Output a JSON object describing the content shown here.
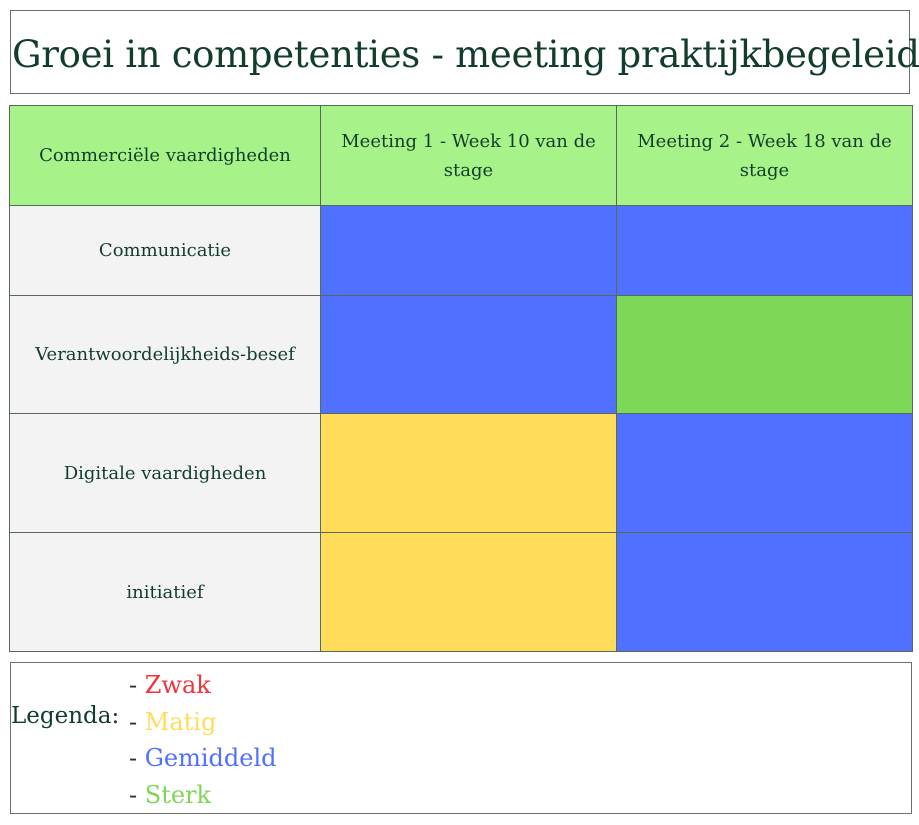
{
  "title": "Groei in competenties - meeting praktijkbegeleider",
  "table": {
    "header": {
      "category": "Commerciële vaardigheden",
      "meeting1": "Meeting 1 - Week 10 van de stage",
      "meeting2": "Meeting 2 - Week 18 van de stage"
    },
    "rows": [
      {
        "label": "Communicatie",
        "meeting1": "Gemiddeld",
        "meeting2": "Gemiddeld"
      },
      {
        "label": "Verantwoordelijkheids-besef",
        "meeting1": "Gemiddeld",
        "meeting2": "Sterk"
      },
      {
        "label": "Digitale vaardigheden",
        "meeting1": "Matig",
        "meeting2": "Gemiddeld"
      },
      {
        "label": "initiatief",
        "meeting1": "Matig",
        "meeting2": "Gemiddeld"
      }
    ]
  },
  "legend": {
    "label": "Legenda:",
    "items": [
      {
        "dash": "- ",
        "text": "Zwak",
        "color": "#f2333a"
      },
      {
        "dash": "- ",
        "text": "Matig",
        "color": "#ffdc5a"
      },
      {
        "dash": "- ",
        "text": "Gemiddeld",
        "color": "#5070ff"
      },
      {
        "dash": "- ",
        "text": "Sterk",
        "color": "#7dd857"
      }
    ]
  }
}
